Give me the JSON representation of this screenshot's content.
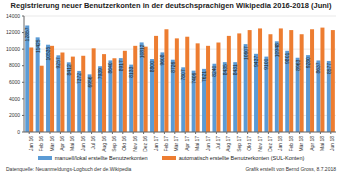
{
  "chart_data": {
    "type": "bar",
    "title": "Registrierung neuer Benutzerkonten in der deutschsprachigen Wikipedia 2016-2018 (Juni)",
    "categories": [
      "Jan 16",
      "Feb 16",
      "Mär 16",
      "Apr 16",
      "Mai 16",
      "Jun 16",
      "Jul 16",
      "Aug 16",
      "Sep 16",
      "Okt 16",
      "Nov 16",
      "Dez 16",
      "Jan 17",
      "Feb 17",
      "Mär 17",
      "Apr 17",
      "Mai 17",
      "Jun 17",
      "Jul 17",
      "Aug 17",
      "Sep 17",
      "Okt 17",
      "Nov 17",
      "Dez 17",
      "Jan 18",
      "Feb 18",
      "Mär 18",
      "Apr 18",
      "Mai 18",
      "Jun 18"
    ],
    "series": [
      {
        "name": "manuell/lokal erstellte Benutzerkonten",
        "color": "#5b9bd5",
        "data_labels": true,
        "values": [
          12857,
          11425,
          10535,
          9257,
          8412,
          7372,
          6956,
          7939,
          8640,
          8917,
          8133,
          10812,
          8800,
          9608,
          8726,
          7807,
          7406,
          7621,
          8240,
          8435,
          8431,
          10607,
          9437,
          9100,
          10948,
          9801,
          8963,
          9280,
          8637,
          8577
        ]
      },
      {
        "name": "automatisch erstellte Benutzerkonten (SUL-Konten)",
        "color": "#ed7d31",
        "values": [
          10200,
          8000,
          10400,
          9600,
          9100,
          9200,
          10100,
          9400,
          8900,
          9800,
          10400,
          10300,
          11600,
          12400,
          11300,
          11500,
          10700,
          10400,
          10800,
          11600,
          11900,
          12300,
          12500,
          11800,
          12500,
          12300,
          11800,
          12400,
          12600,
          12300
        ]
      }
    ],
    "ylim": [
      0,
      14000
    ],
    "yticks": [
      0,
      2000,
      4000,
      6000,
      8000,
      10000,
      12000,
      14000
    ],
    "grid": true,
    "source": "Datenquelle: Neuanmeldungs-Logbuch der de.Wikipedia",
    "credit": "Grafik erstellt von Bernd Gross, 8.7.2018"
  }
}
